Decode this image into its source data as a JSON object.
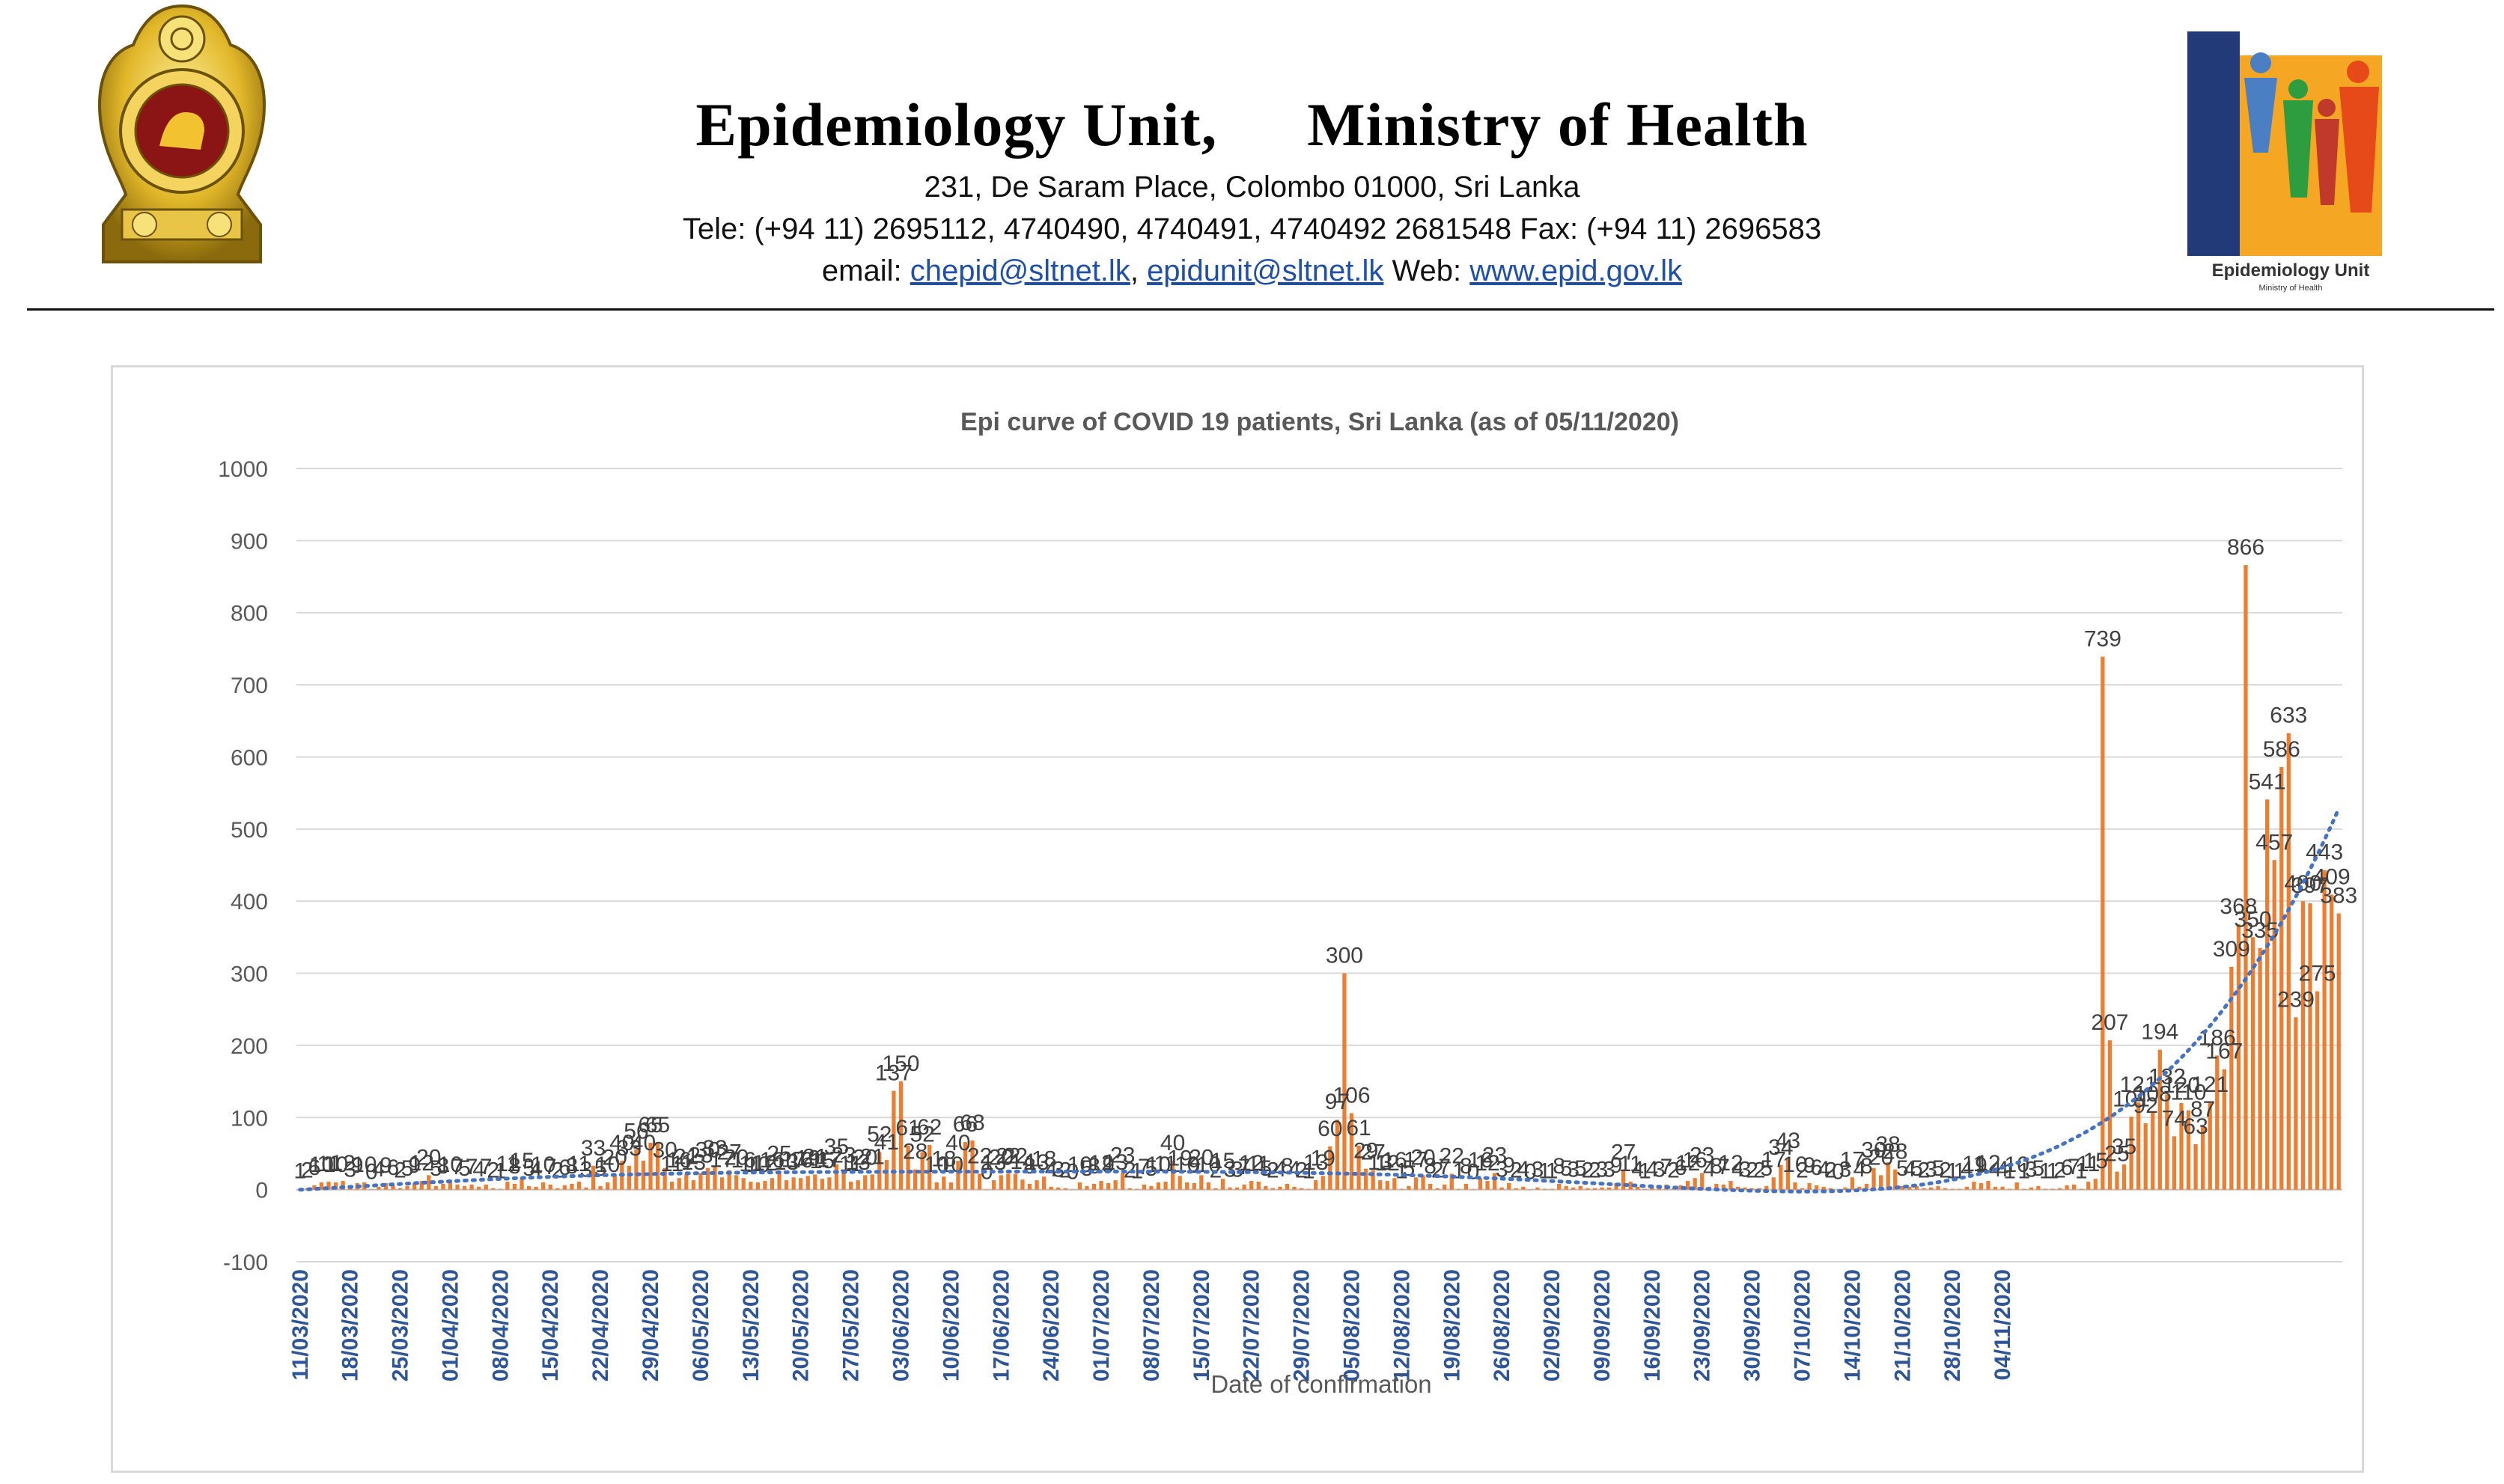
{
  "header": {
    "title_left": "Epidemiology Unit,",
    "title_right": "Ministry of Health",
    "address": "231, De Saram Place, Colombo 01000, Sri Lanka",
    "phone": "Tele: (+94 11) 2695112, 4740490, 4740491, 4740492 2681548  Fax: (+94 11) 2696583",
    "email_label": "email:",
    "email_1": "chepid@sltnet.lk",
    "sep": ",",
    "email_2": "epidunit@sltnet.lk",
    "web_label": "Web:",
    "web": "www.epid.gov.lk",
    "right_logo_caption": "Epidemiology Unit",
    "right_logo_subcaption": "Ministry of Health"
  },
  "colors": {
    "bar": "#ed7d31",
    "trend": "#4472c4",
    "date_label": "#2e5597",
    "grid": "#d9d9d9",
    "tick": "#595959"
  },
  "chart_data": {
    "type": "bar",
    "title": "Epi curve of COVID 19 patients, Sri Lanka  (as of 05/11/2020)",
    "xlabel": "Date of confirmation",
    "ylabel": "",
    "ylim": [
      -100,
      1000
    ],
    "yticks": [
      -100,
      0,
      100,
      200,
      300,
      400,
      500,
      600,
      700,
      800,
      900,
      1000
    ],
    "grid": true,
    "trendline": "polynomial, dotted",
    "xticks": [
      "11/03/2020",
      "18/03/2020",
      "25/03/2020",
      "01/04/2020",
      "08/04/2020",
      "15/04/2020",
      "22/04/2020",
      "29/04/2020",
      "06/05/2020",
      "13/05/2020",
      "20/05/2020",
      "27/05/2020",
      "03/06/2020",
      "10/06/2020",
      "17/06/2020",
      "24/06/2020",
      "01/07/2020",
      "08/07/2020",
      "15/07/2020",
      "22/07/2020",
      "29/07/2020",
      "05/08/2020",
      "12/08/2020",
      "19/08/2020",
      "26/08/2020",
      "02/09/2020",
      "09/09/2020",
      "16/09/2020",
      "23/09/2020",
      "30/09/2020",
      "07/10/2020",
      "14/10/2020",
      "21/10/2020",
      "28/10/2020",
      "04/11/2020"
    ],
    "start_date": "11/03/2020",
    "series": [
      {
        "values": [
          1,
          2,
          6,
          10,
          11,
          10,
          12,
          3,
          9,
          10,
          0,
          4,
          9,
          6,
          2,
          5,
          9,
          12,
          20,
          5,
          8,
          10,
          7,
          5,
          7,
          4,
          7,
          2,
          1,
          11,
          8,
          15,
          5,
          4,
          10,
          7,
          2,
          6,
          8,
          11,
          3,
          33,
          5,
          10,
          20,
          40,
          33,
          56,
          40,
          65,
          65,
          30,
          11,
          16,
          21,
          13,
          23,
          30,
          33,
          17,
          27,
          20,
          16,
          11,
          10,
          12,
          16,
          25,
          13,
          17,
          16,
          19,
          21,
          15,
          17,
          35,
          23,
          11,
          13,
          20,
          21,
          52,
          41,
          137,
          150,
          61,
          28,
          52,
          62,
          10,
          18,
          10,
          40,
          66,
          68,
          22,
          0,
          13,
          20,
          22,
          22,
          14,
          8,
          13,
          18,
          4,
          3,
          2,
          0,
          10,
          5,
          8,
          12,
          9,
          13,
          23,
          2,
          1,
          7,
          5,
          10,
          11,
          40,
          19,
          10,
          9,
          20,
          10,
          2,
          15,
          3,
          3,
          7,
          12,
          11,
          5,
          2,
          4,
          8,
          4,
          2,
          1,
          13,
          19,
          60,
          97,
          300,
          106,
          61,
          29,
          27,
          13,
          12,
          16,
          1,
          5,
          17,
          20,
          8,
          2,
          7,
          22,
          1,
          8,
          0,
          16,
          12,
          23,
          3,
          9,
          2,
          4,
          0,
          3,
          1,
          1,
          8,
          5,
          3,
          5,
          2,
          2,
          3,
          3,
          9,
          27,
          11,
          4,
          1,
          4,
          3,
          7,
          2,
          6,
          12,
          16,
          23,
          4,
          8,
          7,
          12,
          4,
          3,
          2,
          2,
          5,
          17,
          34,
          43,
          10,
          2,
          9,
          6,
          4,
          2,
          0,
          3,
          17,
          4,
          8,
          30,
          20,
          38,
          28,
          5,
          4,
          5,
          2,
          3,
          5,
          2,
          1,
          1,
          4,
          11,
          9,
          12,
          4,
          4,
          1,
          10,
          1,
          3,
          5,
          1,
          1,
          2,
          6,
          7,
          1,
          11,
          15,
          739,
          207,
          25,
          35,
          101,
          121,
          92,
          108,
          194,
          132,
          74,
          120,
          110,
          63,
          87,
          121,
          186,
          167,
          309,
          368,
          866,
          350,
          335,
          541,
          457,
          586,
          633,
          239,
          400,
          397,
          275,
          443,
          409,
          383
        ]
      }
    ]
  }
}
